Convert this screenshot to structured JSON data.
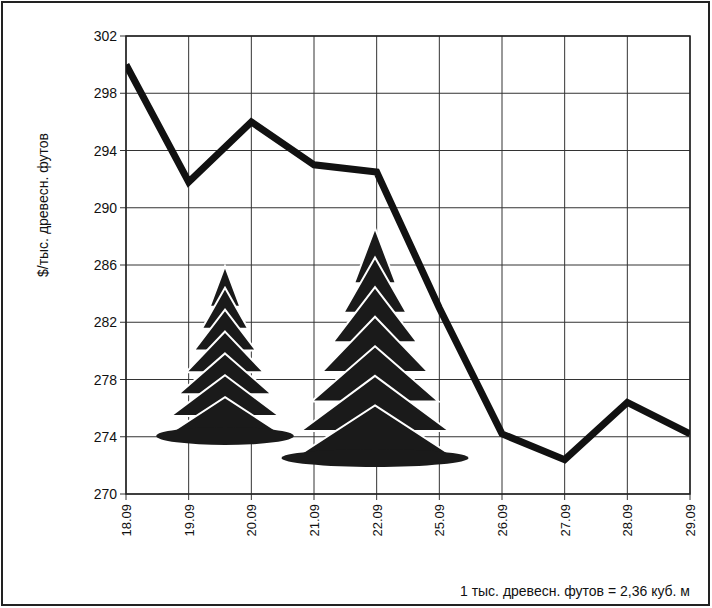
{
  "chart_data": {
    "type": "line",
    "y_label": "$/тыс. древесн. футов",
    "annotation": "1 тыс. древесн. футов = 2,36 куб. м",
    "categories": [
      "18.09",
      "19.09",
      "20.09",
      "21.09",
      "22.09",
      "25.09",
      "26.09",
      "27.09",
      "28.09",
      "29.09"
    ],
    "values": [
      300,
      291.8,
      296,
      293,
      292.5,
      283,
      274.2,
      272.4,
      276.4,
      274.2
    ],
    "color": "#111111",
    "ylim": [
      270,
      302
    ],
    "yticks": [
      270,
      274,
      278,
      282,
      286,
      290,
      294,
      298,
      302
    ],
    "grid": true
  }
}
